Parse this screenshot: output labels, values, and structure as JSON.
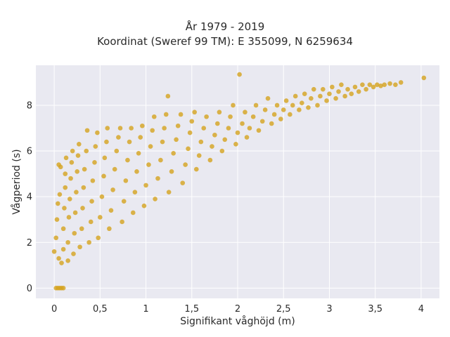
{
  "chart_data": {
    "type": "scatter",
    "title_lines": [
      "År 1979 - 2019",
      "Koordinat (Sweref 99 TM): E 355099, N 6259634"
    ],
    "xlabel": "Signifikant våghöjd (m)",
    "ylabel": "Vågperiod (s)",
    "xlim": [
      -0.2,
      4.2
    ],
    "ylim": [
      -0.45,
      9.75
    ],
    "xticks": [
      0,
      0.5,
      1,
      1.5,
      2,
      2.5,
      3,
      3.5,
      4
    ],
    "xtick_labels": [
      "0",
      "0,5",
      "1",
      "1,5",
      "2",
      "2,5",
      "3",
      "3,5",
      "4"
    ],
    "yticks": [
      0,
      2,
      4,
      6,
      8
    ],
    "ytick_labels": [
      "0",
      "2",
      "4",
      "6",
      "8"
    ],
    "grid": true,
    "legend": "none",
    "marker_color": "#d4a21e",
    "plot_background": "#e9e9f1",
    "grid_color": "#ffffff",
    "series": [
      {
        "points": [
          [
            0.02,
            0
          ],
          [
            0.04,
            0
          ],
          [
            0.06,
            0
          ],
          [
            0.08,
            0
          ],
          [
            0.1,
            0
          ],
          [
            0.0,
            1.6
          ],
          [
            0.02,
            2.2
          ],
          [
            0.03,
            3.0
          ],
          [
            0.04,
            3.7
          ],
          [
            0.05,
            1.3
          ],
          [
            0.06,
            4.1
          ],
          [
            0.07,
            5.3
          ],
          [
            0.05,
            5.4
          ],
          [
            0.08,
            1.1
          ],
          [
            0.1,
            1.7
          ],
          [
            0.1,
            2.6
          ],
          [
            0.11,
            3.5
          ],
          [
            0.12,
            4.4
          ],
          [
            0.12,
            5.0
          ],
          [
            0.13,
            5.7
          ],
          [
            0.15,
            1.2
          ],
          [
            0.15,
            2.0
          ],
          [
            0.16,
            3.1
          ],
          [
            0.17,
            3.9
          ],
          [
            0.18,
            4.8
          ],
          [
            0.19,
            5.5
          ],
          [
            0.2,
            6.0
          ],
          [
            0.21,
            1.5
          ],
          [
            0.22,
            2.4
          ],
          [
            0.23,
            3.3
          ],
          [
            0.24,
            4.2
          ],
          [
            0.25,
            5.1
          ],
          [
            0.26,
            5.8
          ],
          [
            0.27,
            6.3
          ],
          [
            0.28,
            1.8
          ],
          [
            0.3,
            2.6
          ],
          [
            0.31,
            3.5
          ],
          [
            0.32,
            4.4
          ],
          [
            0.33,
            5.2
          ],
          [
            0.35,
            6.0
          ],
          [
            0.36,
            6.9
          ],
          [
            0.38,
            2.0
          ],
          [
            0.4,
            2.9
          ],
          [
            0.41,
            3.8
          ],
          [
            0.42,
            4.7
          ],
          [
            0.44,
            5.5
          ],
          [
            0.45,
            6.2
          ],
          [
            0.47,
            6.8
          ],
          [
            0.48,
            2.2
          ],
          [
            0.5,
            3.1
          ],
          [
            0.52,
            4.0
          ],
          [
            0.54,
            4.9
          ],
          [
            0.55,
            5.7
          ],
          [
            0.57,
            6.4
          ],
          [
            0.58,
            7.0
          ],
          [
            0.6,
            2.6
          ],
          [
            0.62,
            3.4
          ],
          [
            0.64,
            4.3
          ],
          [
            0.66,
            5.2
          ],
          [
            0.68,
            6.0
          ],
          [
            0.7,
            6.6
          ],
          [
            0.72,
            7.0
          ],
          [
            0.74,
            2.9
          ],
          [
            0.76,
            3.8
          ],
          [
            0.78,
            4.7
          ],
          [
            0.8,
            5.6
          ],
          [
            0.82,
            6.4
          ],
          [
            0.84,
            7.0
          ],
          [
            0.86,
            3.3
          ],
          [
            0.88,
            4.2
          ],
          [
            0.9,
            5.1
          ],
          [
            0.92,
            5.9
          ],
          [
            0.94,
            6.6
          ],
          [
            0.96,
            7.1
          ],
          [
            0.98,
            3.6
          ],
          [
            1.0,
            4.5
          ],
          [
            1.03,
            5.4
          ],
          [
            1.05,
            6.2
          ],
          [
            1.07,
            6.9
          ],
          [
            1.09,
            7.5
          ],
          [
            1.1,
            3.9
          ],
          [
            1.13,
            4.8
          ],
          [
            1.16,
            5.6
          ],
          [
            1.18,
            6.4
          ],
          [
            1.2,
            7.0
          ],
          [
            1.22,
            7.6
          ],
          [
            1.24,
            8.4
          ],
          [
            1.25,
            4.2
          ],
          [
            1.28,
            5.1
          ],
          [
            1.3,
            5.9
          ],
          [
            1.33,
            6.5
          ],
          [
            1.35,
            7.1
          ],
          [
            1.38,
            7.6
          ],
          [
            1.4,
            4.6
          ],
          [
            1.43,
            5.4
          ],
          [
            1.46,
            6.1
          ],
          [
            1.48,
            6.8
          ],
          [
            1.5,
            7.3
          ],
          [
            1.53,
            7.7
          ],
          [
            1.55,
            5.2
          ],
          [
            1.58,
            5.8
          ],
          [
            1.6,
            6.4
          ],
          [
            1.63,
            7.0
          ],
          [
            1.66,
            7.5
          ],
          [
            1.7,
            5.6
          ],
          [
            1.72,
            6.2
          ],
          [
            1.75,
            6.7
          ],
          [
            1.78,
            7.2
          ],
          [
            1.8,
            7.7
          ],
          [
            1.83,
            6.0
          ],
          [
            1.86,
            6.5
          ],
          [
            1.9,
            7.0
          ],
          [
            1.92,
            7.5
          ],
          [
            1.95,
            8.0
          ],
          [
            1.98,
            6.3
          ],
          [
            2.0,
            6.8
          ],
          [
            2.02,
            9.35
          ],
          [
            2.05,
            7.2
          ],
          [
            2.08,
            7.7
          ],
          [
            2.1,
            6.6
          ],
          [
            2.13,
            7.0
          ],
          [
            2.17,
            7.5
          ],
          [
            2.2,
            8.0
          ],
          [
            2.23,
            6.9
          ],
          [
            2.27,
            7.3
          ],
          [
            2.3,
            7.8
          ],
          [
            2.33,
            8.3
          ],
          [
            2.37,
            7.2
          ],
          [
            2.4,
            7.6
          ],
          [
            2.43,
            8.0
          ],
          [
            2.47,
            7.4
          ],
          [
            2.5,
            7.8
          ],
          [
            2.53,
            8.2
          ],
          [
            2.57,
            7.6
          ],
          [
            2.6,
            8.0
          ],
          [
            2.63,
            8.4
          ],
          [
            2.67,
            7.8
          ],
          [
            2.7,
            8.1
          ],
          [
            2.73,
            8.5
          ],
          [
            2.77,
            7.9
          ],
          [
            2.8,
            8.3
          ],
          [
            2.83,
            8.7
          ],
          [
            2.87,
            8.0
          ],
          [
            2.9,
            8.4
          ],
          [
            2.93,
            8.7
          ],
          [
            2.97,
            8.2
          ],
          [
            3.0,
            8.5
          ],
          [
            3.03,
            8.8
          ],
          [
            3.07,
            8.3
          ],
          [
            3.1,
            8.6
          ],
          [
            3.13,
            8.9
          ],
          [
            3.17,
            8.4
          ],
          [
            3.2,
            8.7
          ],
          [
            3.24,
            8.5
          ],
          [
            3.28,
            8.8
          ],
          [
            3.32,
            8.6
          ],
          [
            3.36,
            8.9
          ],
          [
            3.4,
            8.7
          ],
          [
            3.44,
            8.9
          ],
          [
            3.48,
            8.8
          ],
          [
            3.52,
            8.9
          ],
          [
            3.56,
            8.85
          ],
          [
            3.6,
            8.9
          ],
          [
            3.66,
            8.95
          ],
          [
            3.72,
            8.9
          ],
          [
            3.78,
            9.0
          ],
          [
            4.03,
            9.2
          ]
        ]
      }
    ]
  }
}
